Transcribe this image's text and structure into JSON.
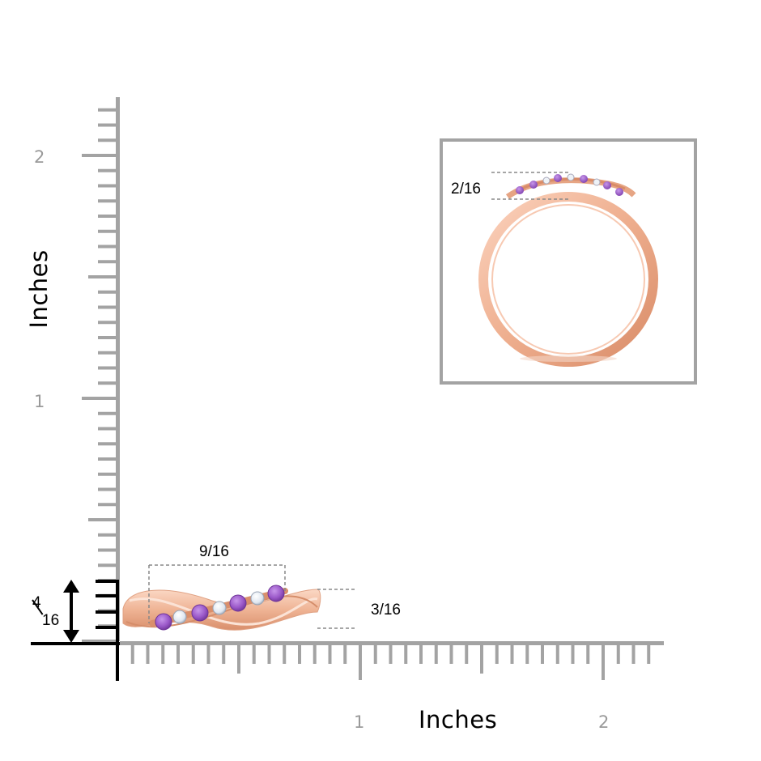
{
  "axes": {
    "y_title": "Inches",
    "x_title": "Inches",
    "y_tick_labels": [
      "2",
      "1"
    ],
    "x_tick_labels": [
      "1",
      "2"
    ]
  },
  "dimensions": {
    "width_label": "9/16",
    "height_label": "3/16",
    "inset_label": "2/16",
    "scale_numerator": "4",
    "scale_denominator": "16"
  },
  "colors": {
    "ruler": "#a3a3a3",
    "rose_gold": "#f0b79a",
    "amethyst": "#9b59c9",
    "diamond": "#e8eef6"
  }
}
